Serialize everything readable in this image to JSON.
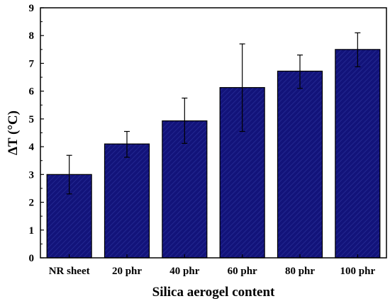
{
  "chart_data": {
    "type": "bar",
    "categories": [
      "NR sheet",
      "20 phr",
      "40 phr",
      "60 phr",
      "80 phr",
      "100 phr"
    ],
    "values": [
      3.0,
      4.1,
      4.93,
      6.13,
      6.72,
      7.5
    ],
    "error_low": [
      2.3,
      3.62,
      4.12,
      4.55,
      6.1,
      6.88
    ],
    "error_high": [
      3.69,
      4.55,
      5.75,
      7.7,
      7.3,
      8.1
    ],
    "xlabel": "Silica aerogel content",
    "ylabel": "ΔT (°C)",
    "ylim": [
      0,
      9
    ],
    "yticks": [
      0,
      1,
      2,
      3,
      4,
      5,
      6,
      7,
      8,
      9
    ],
    "bar_color": "#12137a",
    "bar_stroke": "#000000",
    "bar_pattern": "diagonal hatch",
    "grid": false,
    "legend": "none"
  }
}
